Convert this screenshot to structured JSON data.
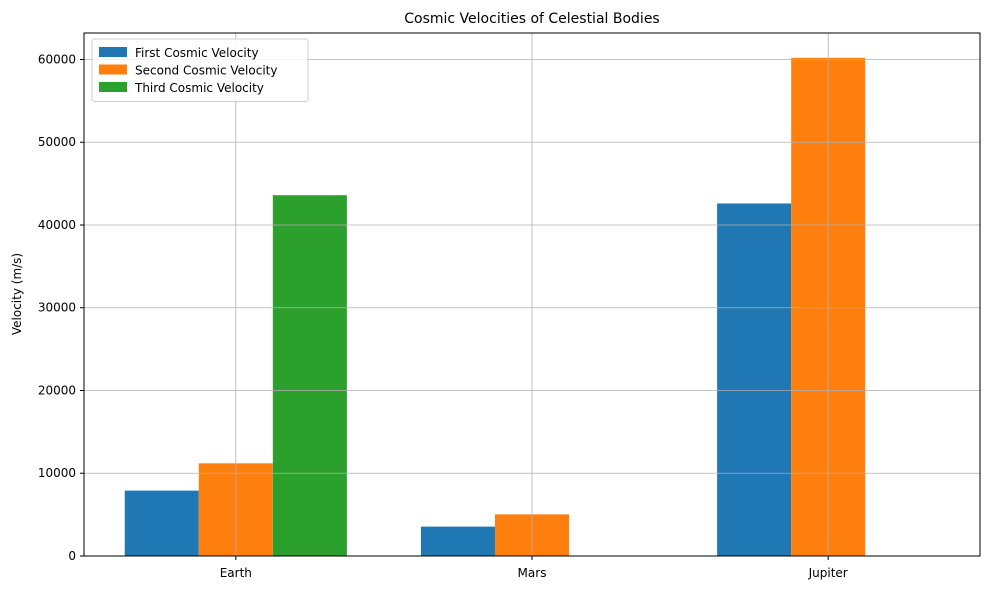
{
  "chart_data": {
    "type": "bar",
    "title": "Cosmic Velocities of Celestial Bodies",
    "xlabel": "",
    "ylabel": "Velocity (m/s)",
    "categories": [
      "Earth",
      "Mars",
      "Jupiter"
    ],
    "series": [
      {
        "name": "First Cosmic Velocity",
        "color": "#1f77b4",
        "values": [
          7900,
          3550,
          42600
        ]
      },
      {
        "name": "Second Cosmic Velocity",
        "color": "#ff7f0e",
        "values": [
          11200,
          5030,
          60200
        ]
      },
      {
        "name": "Third Cosmic Velocity",
        "color": "#2ca02c",
        "values": [
          43600,
          0,
          0
        ]
      }
    ],
    "ylim": [
      0,
      63200
    ],
    "yticks": [
      0,
      10000,
      20000,
      30000,
      40000,
      50000,
      60000
    ],
    "grid": true,
    "legend_position": "top-left"
  }
}
